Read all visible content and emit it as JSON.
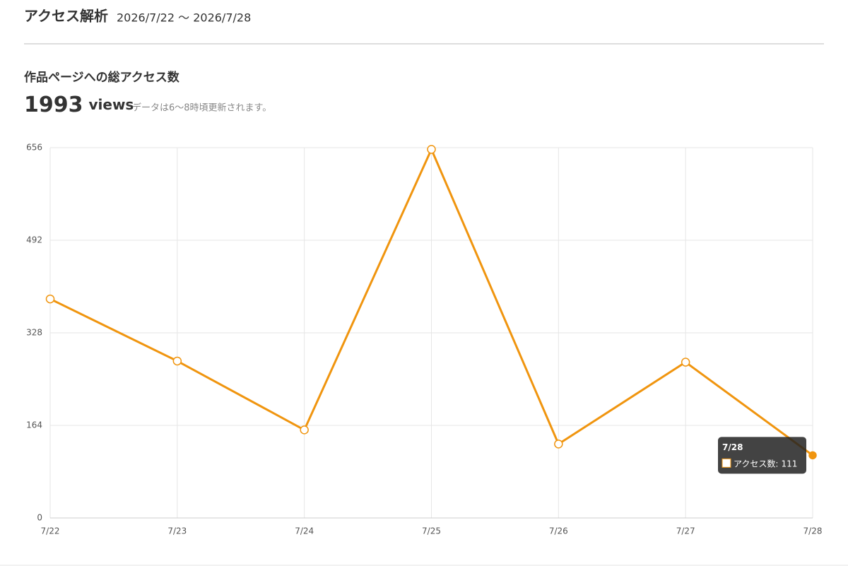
{
  "header": {
    "title": "アクセス解析",
    "date_range": "2026/7/22 〜 2026/7/28"
  },
  "chart_data": {
    "type": "line",
    "title": "作品ページへの総アクセス数",
    "total": 1993,
    "total_unit": "views",
    "note": "データは6〜8時頃更新されます。",
    "categories": [
      "7/22",
      "7/23",
      "7/24",
      "7/25",
      "7/26",
      "7/27",
      "7/28"
    ],
    "series": [
      {
        "name": "アクセス数",
        "color": "#f0950f",
        "values": [
          388,
          278,
          156,
          653,
          131,
          276,
          111
        ]
      }
    ],
    "ylim": [
      0,
      656
    ],
    "yticks": [
      0,
      164,
      328,
      492,
      656
    ],
    "grid": true
  }
}
